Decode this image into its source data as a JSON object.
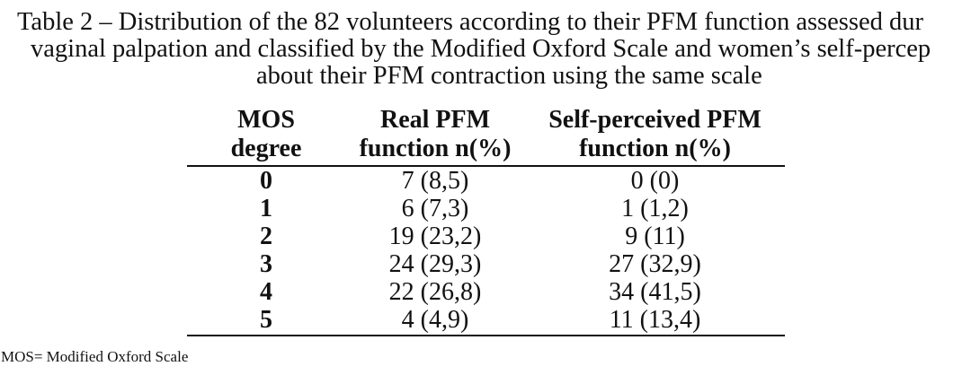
{
  "caption": {
    "line1": "Table 2 – Distribution of the 82 volunteers according to their PFM function assessed dur",
    "line2": "vaginal palpation and classified by the Modified Oxford Scale and women’s self-percep",
    "line3": "about their PFM contraction using the same scale"
  },
  "table": {
    "headers": [
      {
        "line1": "MOS",
        "line2": "degree"
      },
      {
        "line1": "Real PFM",
        "line2": "function n(%)"
      },
      {
        "line1": "Self-perceived PFM",
        "line2": "function n(%)"
      }
    ],
    "rows": [
      {
        "degree": "0",
        "real": "7 (8,5)",
        "self": "0 (0)"
      },
      {
        "degree": "1",
        "real": "6 (7,3)",
        "self": "1 (1,2)"
      },
      {
        "degree": "2",
        "real": "19 (23,2)",
        "self": "9 (11)"
      },
      {
        "degree": "3",
        "real": "24 (29,3)",
        "self": "27 (32,9)"
      },
      {
        "degree": "4",
        "real": "22 (26,8)",
        "self": "34 (41,5)"
      },
      {
        "degree": "5",
        "real": "4 (4,9)",
        "self": "11 (13,4)"
      }
    ]
  },
  "footnote": "MOS= Modified Oxford Scale"
}
